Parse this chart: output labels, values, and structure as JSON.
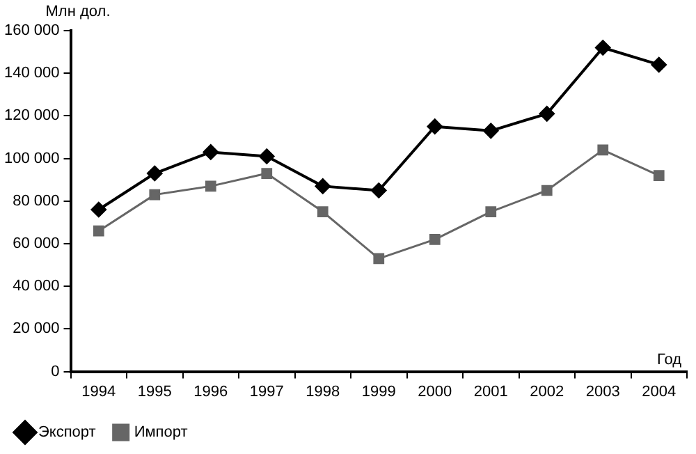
{
  "chart_data": {
    "type": "line",
    "ylabel": "Млн дол.",
    "xlabel": "Год",
    "categories": [
      "1994",
      "1995",
      "1996",
      "1997",
      "1998",
      "1999",
      "2000",
      "2001",
      "2002",
      "2003",
      "2004"
    ],
    "series": [
      {
        "name": "Экспорт",
        "color": "#000000",
        "marker": "diamond",
        "values": [
          76000,
          93000,
          103000,
          101000,
          87000,
          85000,
          115000,
          113000,
          121000,
          152000,
          144000
        ]
      },
      {
        "name": "Импорт",
        "color": "#666666",
        "marker": "square",
        "values": [
          66000,
          83000,
          87000,
          93000,
          75000,
          53000,
          62000,
          75000,
          85000,
          104000,
          92000
        ]
      }
    ],
    "ylim": [
      0,
      160000
    ],
    "yticks": [
      0,
      {
        "value": 20000,
        "label": "20 000"
      },
      {
        "value": 40000,
        "label": "40 000"
      },
      {
        "value": 60000,
        "label": "60 000"
      },
      {
        "value": 80000,
        "label": "80 000"
      },
      {
        "value": 100000,
        "label": "100 000"
      },
      {
        "value": 120000,
        "label": "120 000"
      },
      {
        "value": 140000,
        "label": "140 000"
      },
      {
        "value": 160000,
        "label": "160 000"
      }
    ],
    "grid": false,
    "legend": "bottom left",
    "line_style": "solid"
  }
}
